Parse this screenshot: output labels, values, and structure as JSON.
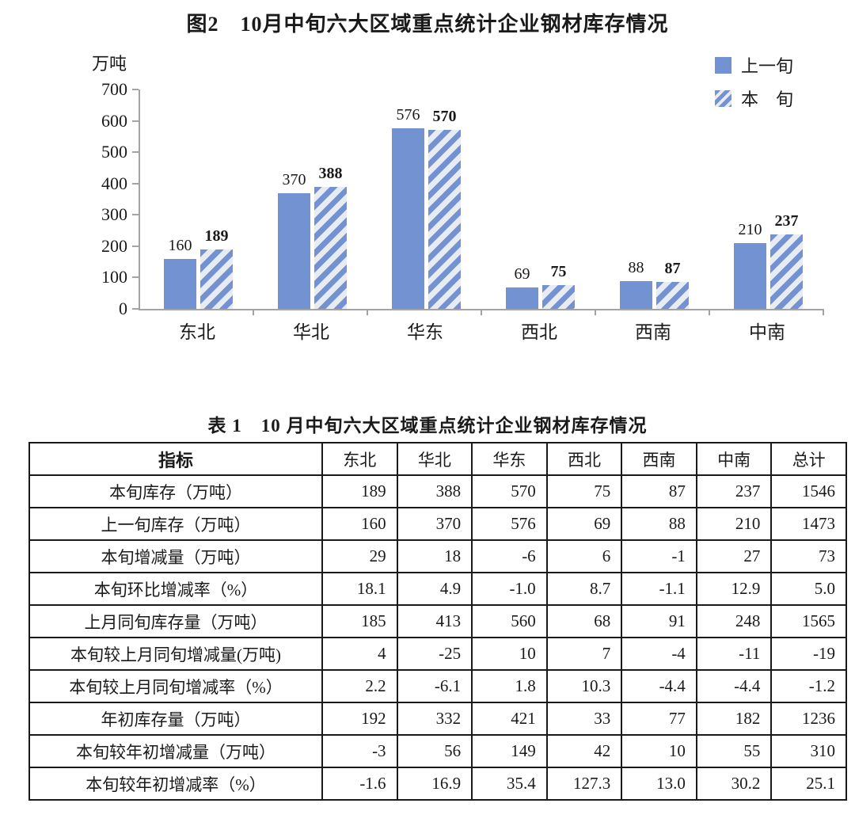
{
  "figure": {
    "title": "图2　10月中旬六大区域重点统计企业钢材库存情况",
    "unit_label": "万吨",
    "legend": [
      {
        "label": "上一旬",
        "style": "solid"
      },
      {
        "label": "本　旬",
        "style": "hatched"
      }
    ]
  },
  "chart_data": {
    "type": "bar",
    "title": "图2　10月中旬六大区域重点统计企业钢材库存情况",
    "ylabel": "万吨",
    "ylim": [
      0,
      700
    ],
    "yticks": [
      0,
      100,
      200,
      300,
      400,
      500,
      600,
      700
    ],
    "grid": false,
    "legend_position": "top-right",
    "categories": [
      "东北",
      "华北",
      "华东",
      "西北",
      "西南",
      "中南"
    ],
    "series": [
      {
        "name": "上一旬",
        "style": "solid",
        "values": [
          160,
          370,
          576,
          69,
          88,
          210
        ]
      },
      {
        "name": "本旬",
        "style": "hatched",
        "values": [
          189,
          388,
          570,
          75,
          87,
          237
        ]
      }
    ],
    "colors": {
      "bar_solid": "#7392d2",
      "hatch_stripe": "#7392d2",
      "hatch_bg": "#e8ebf1",
      "axis": "#a3a3a3",
      "text": "#1a1a1a"
    }
  },
  "table": {
    "title": "表 1　10 月中旬六大区域重点统计企业钢材库存情况",
    "columns": [
      "指标",
      "东北",
      "华北",
      "华东",
      "西北",
      "西南",
      "中南",
      "总计"
    ],
    "rows": [
      {
        "label": "本旬库存（万吨）",
        "values": [
          "189",
          "388",
          "570",
          "75",
          "87",
          "237",
          "1546"
        ]
      },
      {
        "label": "上一旬库存（万吨）",
        "values": [
          "160",
          "370",
          "576",
          "69",
          "88",
          "210",
          "1473"
        ]
      },
      {
        "label": "本旬增减量（万吨）",
        "values": [
          "29",
          "18",
          "-6",
          "6",
          "-1",
          "27",
          "73"
        ]
      },
      {
        "label": "本旬环比增减率（%）",
        "values": [
          "18.1",
          "4.9",
          "-1.0",
          "8.7",
          "-1.1",
          "12.9",
          "5.0"
        ]
      },
      {
        "label": "上月同旬库存量（万吨）",
        "values": [
          "185",
          "413",
          "560",
          "68",
          "91",
          "248",
          "1565"
        ]
      },
      {
        "label": "本旬较上月同旬增减量(万吨)",
        "values": [
          "4",
          "-25",
          "10",
          "7",
          "-4",
          "-11",
          "-19"
        ]
      },
      {
        "label": "本旬较上月同旬增减率（%）",
        "values": [
          "2.2",
          "-6.1",
          "1.8",
          "10.3",
          "-4.4",
          "-4.4",
          "-1.2"
        ]
      },
      {
        "label": "年初库存量（万吨）",
        "values": [
          "192",
          "332",
          "421",
          "33",
          "77",
          "182",
          "1236"
        ]
      },
      {
        "label": "本旬较年初增减量（万吨）",
        "values": [
          "-3",
          "56",
          "149",
          "42",
          "10",
          "55",
          "310"
        ]
      },
      {
        "label": "本旬较年初增减率（%）",
        "values": [
          "-1.6",
          "16.9",
          "35.4",
          "127.3",
          "13.0",
          "30.2",
          "25.1"
        ]
      }
    ]
  }
}
